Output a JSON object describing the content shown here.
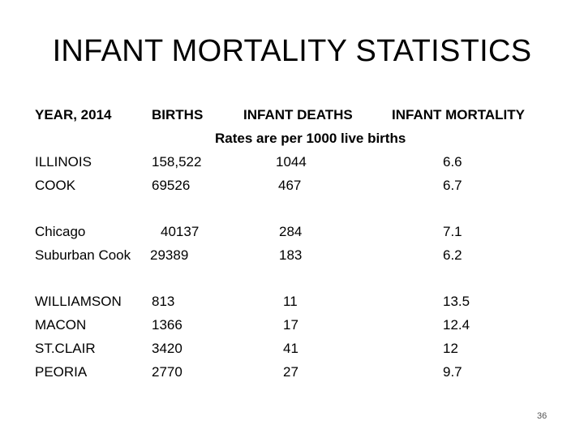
{
  "title": "INFANT MORTALITY STATISTICS",
  "headers": {
    "year": "YEAR, 2014",
    "births": "BIRTHS",
    "deaths": "INFANT DEATHS",
    "mortality": "INFANT MORTALITY"
  },
  "rate_note": "Rates are per 1000 live births",
  "rows": [
    {
      "name": "ILLINOIS",
      "births": "158,522",
      "deaths": "1044",
      "rate": "6.6"
    },
    {
      "name": "COOK",
      "births": "69526",
      "deaths": "467",
      "rate": "6.7"
    },
    {
      "name": "Chicago",
      "births": "40137",
      "deaths": "284",
      "rate": "7.1"
    },
    {
      "name": "Suburban Cook",
      "births": "29389",
      "deaths": "183",
      "rate": "6.2"
    },
    {
      "name": "WILLIAMSON",
      "births": "813",
      "deaths": "11",
      "rate": "13.5"
    },
    {
      "name": "MACON",
      "births": "1366",
      "deaths": "17",
      "rate": "12.4"
    },
    {
      "name": "ST.CLAIR",
      "births": "3420",
      "deaths": "41",
      "rate": "12"
    },
    {
      "name": "PEORIA",
      "births": "2770",
      "deaths": "27",
      "rate": "9.7"
    }
  ],
  "page_number": "36"
}
